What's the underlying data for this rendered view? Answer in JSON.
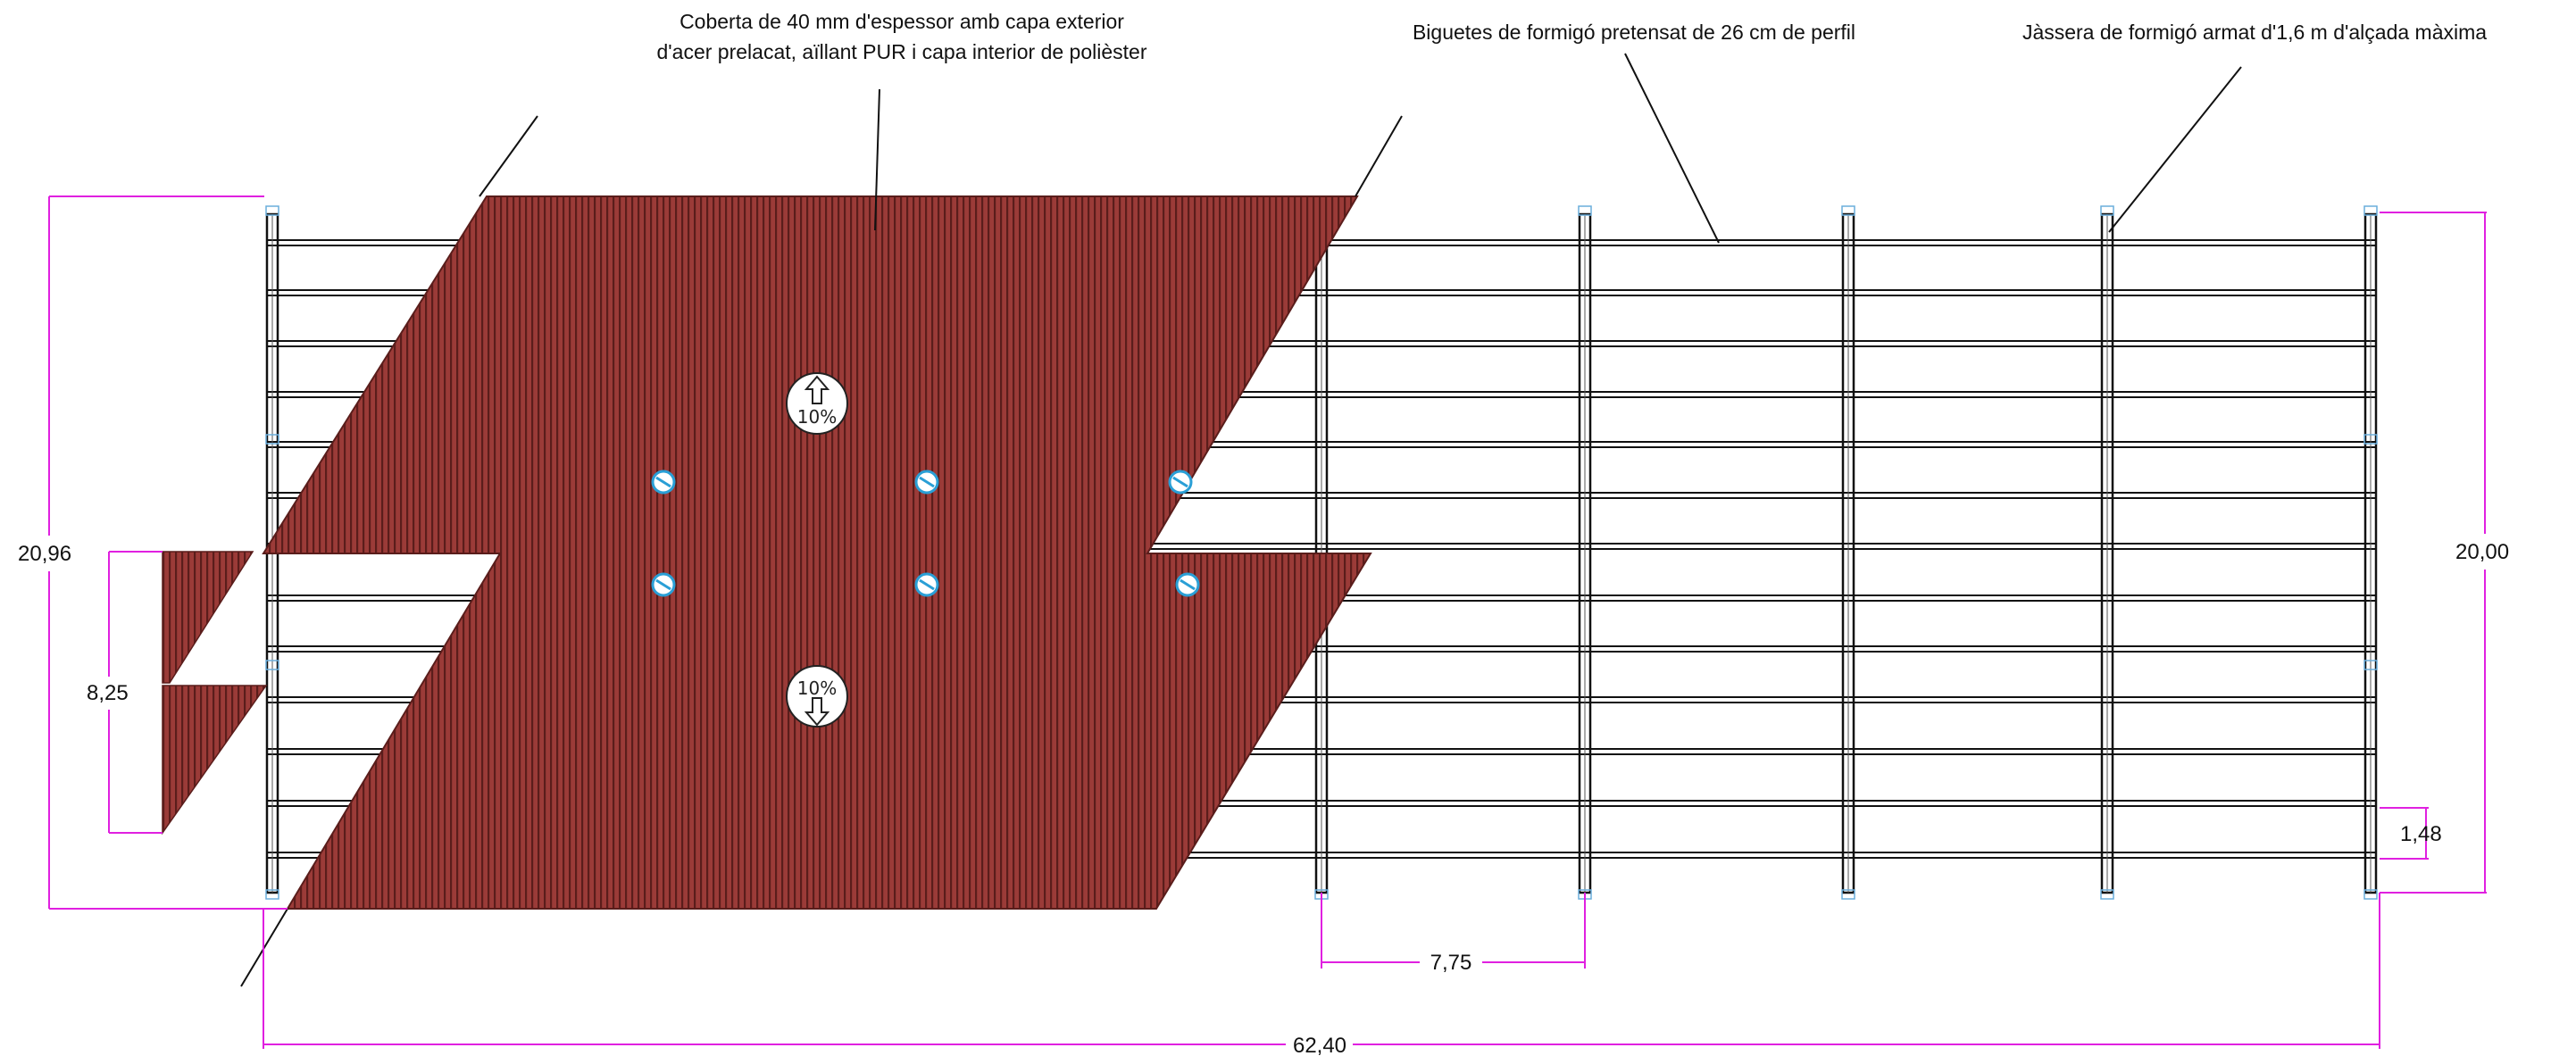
{
  "annotations": {
    "roof_line1": "Coberta de 40 mm d'espessor amb capa exterior",
    "roof_line2": "d'acer prelacat, aïllant PUR i capa interior de polièster",
    "joists": "Biguetes de formigó pretensat de 26 cm de perfil",
    "beam": "Jàssera de formigó armat d'1,6 m d'alçada màxima"
  },
  "dimensions": {
    "total_height_left": "20,96",
    "opening_height": "8,25",
    "total_height_right": "20,00",
    "joist_spacing": "1,48",
    "bay_spacing": "7,75",
    "total_length": "62,40"
  },
  "slopes": {
    "up": "10%",
    "down": "10%"
  },
  "colors": {
    "roof_fill": "#9b3b38",
    "roof_stripe": "#5a1d1b",
    "dimension_line": "#e020e0",
    "structure_line": "#111111",
    "drain_blue": "#2a9fd6",
    "node_marker": "#6aaedc"
  },
  "icons": {
    "drain": "roof-drain-icon",
    "slope_up": "slope-arrow-up-icon",
    "slope_down": "slope-arrow-down-icon"
  }
}
